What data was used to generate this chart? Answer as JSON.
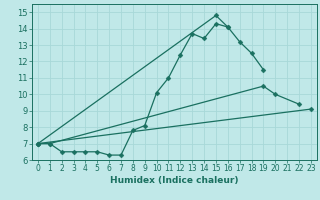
{
  "xlabel": "Humidex (Indice chaleur)",
  "bg_color": "#c0e8e8",
  "line_color": "#1a7060",
  "grid_color": "#a8d8d8",
  "xlim": [
    -0.5,
    23.5
  ],
  "ylim": [
    6,
    15.5
  ],
  "xticks": [
    0,
    1,
    2,
    3,
    4,
    5,
    6,
    7,
    8,
    9,
    10,
    11,
    12,
    13,
    14,
    15,
    16,
    17,
    18,
    19,
    20,
    21,
    22,
    23
  ],
  "yticks": [
    6,
    7,
    8,
    9,
    10,
    11,
    12,
    13,
    14,
    15
  ],
  "series": [
    {
      "x": [
        0,
        1,
        2,
        3,
        4,
        5,
        6,
        7,
        8,
        9,
        10,
        11,
        12,
        13,
        14,
        15,
        16,
        17,
        18,
        19
      ],
      "y": [
        7.0,
        7.0,
        6.5,
        6.5,
        6.5,
        6.5,
        6.3,
        6.3,
        7.8,
        8.1,
        10.1,
        11.0,
        12.4,
        13.7,
        13.4,
        14.3,
        14.1,
        13.2,
        12.5,
        11.5
      ]
    },
    {
      "x": [
        0,
        15,
        16
      ],
      "y": [
        7.0,
        14.8,
        14.1
      ]
    },
    {
      "x": [
        0,
        1,
        19,
        20,
        22
      ],
      "y": [
        7.0,
        7.0,
        10.5,
        10.0,
        9.4
      ]
    },
    {
      "x": [
        0,
        23
      ],
      "y": [
        7.0,
        9.1
      ]
    }
  ],
  "marker": "D",
  "marker_size": 2.5,
  "linewidth": 0.9,
  "xlabel_fontsize": 6.5,
  "tick_fontsize": 5.5
}
